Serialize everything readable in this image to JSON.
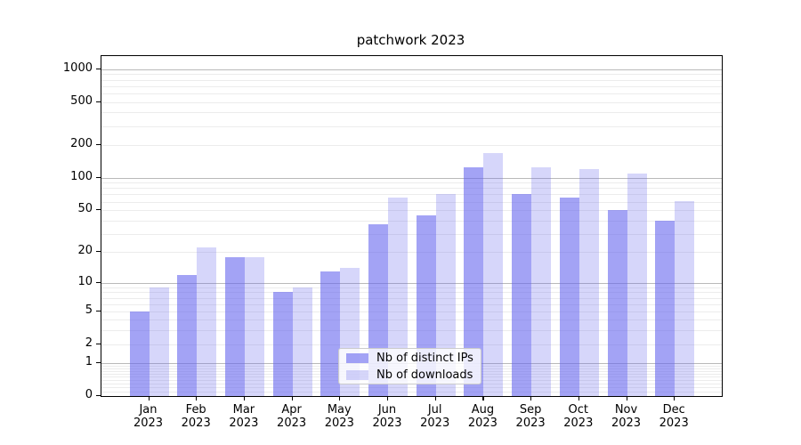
{
  "chart_data": {
    "type": "bar",
    "title": "patchwork 2023",
    "categories": [
      "Jan",
      "Feb",
      "Mar",
      "Apr",
      "May",
      "Jun",
      "Jul",
      "Aug",
      "Sep",
      "Oct",
      "Nov",
      "Dec"
    ],
    "tick_year": "2023",
    "series": [
      {
        "name": "Nb of distinct IPs",
        "values": [
          5,
          12,
          18,
          8,
          13,
          37,
          45,
          125,
          70,
          66,
          50,
          40
        ],
        "fill": "rgba(102,102,238,0.60)"
      },
      {
        "name": "Nb of downloads",
        "values": [
          9,
          22,
          18,
          9,
          14,
          65,
          70,
          170,
          124,
          120,
          110,
          61
        ],
        "fill": "rgba(102,102,238,0.27)"
      }
    ],
    "yscale": "log1p",
    "yticks": [
      0,
      1,
      2,
      5,
      10,
      20,
      50,
      100,
      200,
      500,
      1000
    ],
    "major_gridlines": [
      1,
      10,
      100,
      1000
    ],
    "ylim": [
      0,
      1320
    ],
    "grid": "on",
    "legend_position": "lower-center",
    "colors": {
      "bar_base": "#6666ee",
      "major_grid": "#b9b9b9",
      "minor_grid": "#ececec",
      "axis": "#000000",
      "legend_border": "#cccccc"
    }
  }
}
